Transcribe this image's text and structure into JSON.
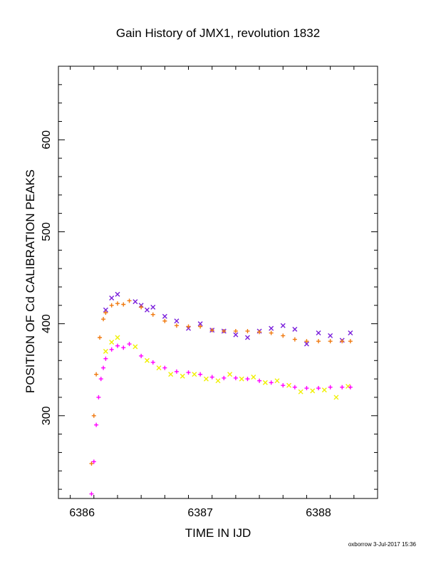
{
  "chart_data": {
    "type": "scatter",
    "title": "Gain History of JMX1, revolution 1832",
    "xlabel": "TIME IN IJD",
    "ylabel": "POSITION OF Cd CALIBRATION PEAKS",
    "xlim": [
      6385.8,
      6388.5
    ],
    "ylim": [
      210,
      680
    ],
    "x_ticks": [
      6386,
      6387,
      6388
    ],
    "y_ticks": [
      300,
      400,
      500,
      600
    ],
    "grid": false,
    "colors": {
      "high_raw": "#7a1fdb",
      "high_smooth": "#f07a10",
      "low_raw": "#f0f000",
      "low_smooth": "#ff00ff"
    },
    "series": [
      {
        "marker": "x",
        "color": "#7a1fdb",
        "x": [
          6386.2,
          6386.25,
          6386.3,
          6386.45,
          6386.5,
          6386.55,
          6386.6,
          6386.7,
          6386.8,
          6386.9,
          6387.0,
          6387.1,
          6387.2,
          6387.3,
          6387.4,
          6387.5,
          6387.6,
          6387.7,
          6387.8,
          6387.9,
          6388.0,
          6388.1,
          6388.2,
          6388.27
        ],
        "y": [
          415,
          428,
          432,
          424,
          420,
          415,
          418,
          408,
          403,
          395,
          400,
          393,
          392,
          388,
          385,
          392,
          395,
          398,
          394,
          378,
          390,
          387,
          382,
          390
        ]
      },
      {
        "marker": "+",
        "color": "#f07a10",
        "x": [
          6386.08,
          6386.1,
          6386.12,
          6386.15,
          6386.18,
          6386.2,
          6386.25,
          6386.3,
          6386.35,
          6386.4,
          6386.5,
          6386.6,
          6386.7,
          6386.8,
          6386.9,
          6387.0,
          6387.1,
          6387.2,
          6387.3,
          6387.4,
          6387.5,
          6387.6,
          6387.7,
          6387.8,
          6387.9,
          6388.0,
          6388.1,
          6388.2,
          6388.27
        ],
        "y": [
          248,
          300,
          345,
          385,
          405,
          412,
          420,
          422,
          421,
          425,
          418,
          410,
          403,
          398,
          397,
          397,
          393,
          392,
          392,
          392,
          391,
          390,
          387,
          383,
          381,
          381,
          381,
          381,
          381
        ]
      },
      {
        "marker": "x",
        "color": "#f0f000",
        "x": [
          6386.2,
          6386.25,
          6386.3,
          6386.45,
          6386.55,
          6386.65,
          6386.75,
          6386.85,
          6386.95,
          6387.05,
          6387.15,
          6387.25,
          6387.35,
          6387.45,
          6387.55,
          6387.65,
          6387.75,
          6387.85,
          6387.95,
          6388.05,
          6388.15,
          6388.25
        ],
        "y": [
          370,
          380,
          385,
          375,
          360,
          352,
          345,
          343,
          345,
          340,
          338,
          345,
          340,
          342,
          336,
          338,
          333,
          326,
          327,
          328,
          320,
          332
        ]
      },
      {
        "marker": "+",
        "color": "#ff00ff",
        "x": [
          6386.08,
          6386.1,
          6386.12,
          6386.14,
          6386.16,
          6386.18,
          6386.2,
          6386.25,
          6386.3,
          6386.35,
          6386.4,
          6386.5,
          6386.6,
          6386.7,
          6386.8,
          6386.9,
          6387.0,
          6387.1,
          6387.2,
          6387.3,
          6387.4,
          6387.5,
          6387.6,
          6387.7,
          6387.8,
          6387.9,
          6388.0,
          6388.1,
          6388.2,
          6388.27
        ],
        "y": [
          215,
          250,
          290,
          320,
          340,
          352,
          362,
          372,
          376,
          374,
          378,
          365,
          358,
          352,
          348,
          347,
          345,
          342,
          341,
          341,
          340,
          338,
          336,
          333,
          331,
          330,
          330,
          331,
          331,
          331
        ]
      }
    ]
  },
  "footer": "oxborrow  3-Jul-2017 15:36"
}
